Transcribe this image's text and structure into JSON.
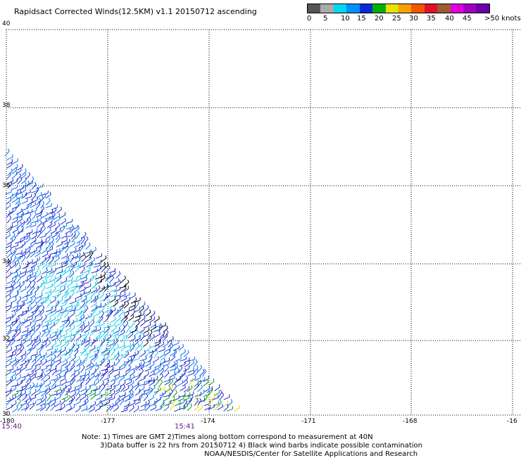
{
  "title": "Rapidsact Corrected Winds(12.5KM) v1.1 20150712 ascending",
  "colorbar": {
    "colors": [
      "#555555",
      "#aaaaaa",
      "#00d8f0",
      "#0090ff",
      "#0a2ad8",
      "#00b000",
      "#e8e000",
      "#f7a000",
      "#f05800",
      "#e0102a",
      "#9c5b30",
      "#e000e0",
      "#a000c0",
      "#6a00a8"
    ],
    "labels": [
      "0",
      "5",
      "10",
      "15",
      "20",
      "25",
      "30",
      "35",
      "40",
      "45",
      ">50 knots"
    ]
  },
  "lat_labels": [
    "40",
    "38",
    "36",
    "34",
    "32",
    "30"
  ],
  "lon_labels": [
    "-180",
    "-177",
    "-174",
    "-171",
    "-168",
    "-16"
  ],
  "times": [
    "15:40",
    "15:41"
  ],
  "notes": [
    "Note: 1) Times are GMT 2)Times along bottom correspond to measurement at 40N",
    "3)Data buffer is 22 hrs from 20150712 4) Black wind barbs indicate possible contamination",
    "NOAA/NESDIS/Center for Satellite Applications and Research"
  ],
  "wind_colors": {
    "dark_blue": "#1a2ad0",
    "blue": "#0a6cf0",
    "cyan": "#12c8e8",
    "green": "#00a000",
    "yellow": "#e8d800",
    "contaminated": "#000000"
  }
}
